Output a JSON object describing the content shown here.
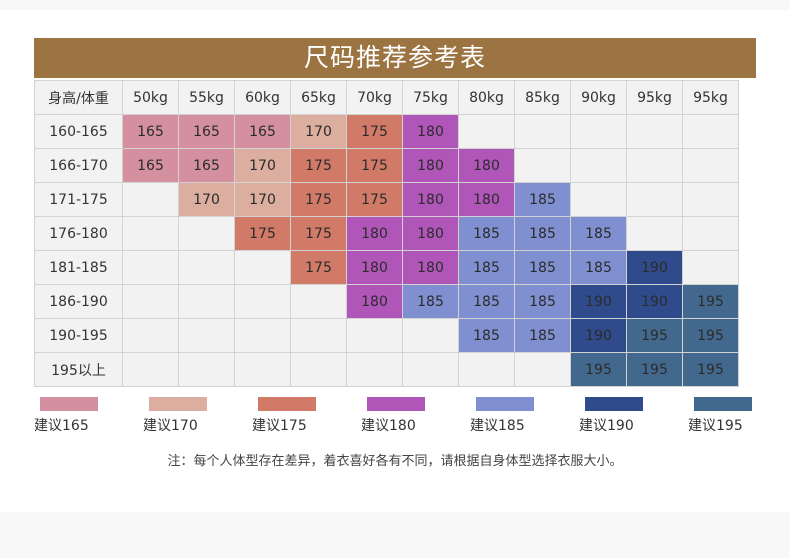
{
  "title": "尺码推荐参考表",
  "header": {
    "corner": "身高/体重",
    "weights": [
      "50kg",
      "55kg",
      "60kg",
      "65kg",
      "70kg",
      "75kg",
      "80kg",
      "85kg",
      "90kg",
      "95kg",
      "95kg"
    ]
  },
  "colors": {
    "165": "#d4909f",
    "170": "#dbaea0",
    "175": "#d27a68",
    "180": "#b156b9",
    "185": "#7f8fd0",
    "190": "#2f4b8b",
    "195": "#42698d",
    "empty": "#f2f2f2"
  },
  "rows": [
    {
      "height": "160-165",
      "cells": [
        "165",
        "165",
        "165",
        "170",
        "175",
        "180",
        "",
        "",
        "",
        "",
        ""
      ]
    },
    {
      "height": "166-170",
      "cells": [
        "165",
        "165",
        "170",
        "175",
        "175",
        "180",
        "180",
        "",
        "",
        "",
        ""
      ]
    },
    {
      "height": "171-175",
      "cells": [
        "",
        "170",
        "170",
        "175",
        "175",
        "180",
        "180",
        "185",
        "",
        "",
        ""
      ]
    },
    {
      "height": "176-180",
      "cells": [
        "",
        "",
        "175",
        "175",
        "180",
        "180",
        "185",
        "185",
        "185",
        "",
        ""
      ]
    },
    {
      "height": "181-185",
      "cells": [
        "",
        "",
        "",
        "175",
        "180",
        "180",
        "185",
        "185",
        "185",
        "190",
        ""
      ]
    },
    {
      "height": "186-190",
      "cells": [
        "",
        "",
        "",
        "",
        "180",
        "185",
        "185",
        "185",
        "190",
        "190",
        "195"
      ]
    },
    {
      "height": "190-195",
      "cells": [
        "",
        "",
        "",
        "",
        "",
        "",
        "185",
        "185",
        "190",
        "195",
        "195"
      ]
    },
    {
      "height": "195以上",
      "cells": [
        "",
        "",
        "",
        "",
        "",
        "",
        "",
        "",
        "195",
        "195",
        "195"
      ]
    }
  ],
  "legend": [
    {
      "size": "165",
      "label": "建议165"
    },
    {
      "size": "170",
      "label": "建议170"
    },
    {
      "size": "175",
      "label": "建议175"
    },
    {
      "size": "180",
      "label": "建议180"
    },
    {
      "size": "185",
      "label": "建议185"
    },
    {
      "size": "190",
      "label": "建议190"
    },
    {
      "size": "195",
      "label": "建议195"
    }
  ],
  "footnote": "注：每个人体型存在差异，着衣喜好各有不同，请根据自身体型选择衣服大小。"
}
